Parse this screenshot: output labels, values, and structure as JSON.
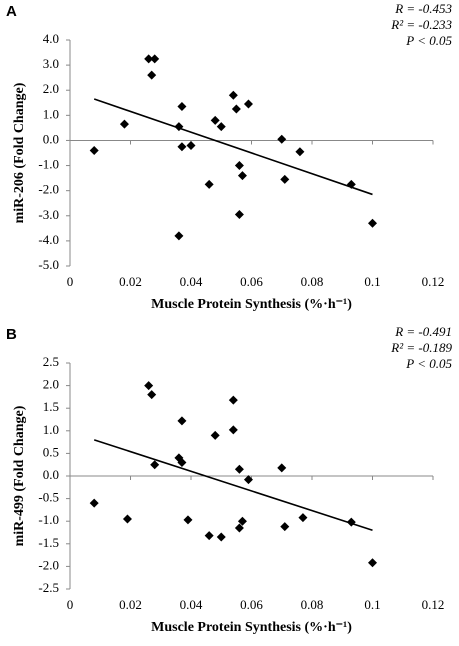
{
  "chart_data": [
    {
      "type": "scatter",
      "panel_label": "A",
      "annotations": [
        "R = -0.453",
        "R² = -0.233",
        "P < 0.05"
      ],
      "x_label": "Muscle Protein Synthesis (%·h⁻¹)",
      "y_label": "miR-206 (Fold Change)",
      "color": "#000000",
      "x": [
        0.008,
        0.018,
        0.026,
        0.027,
        0.028,
        0.036,
        0.036,
        0.037,
        0.037,
        0.04,
        0.046,
        0.048,
        0.05,
        0.054,
        0.055,
        0.056,
        0.056,
        0.057,
        0.059,
        0.07,
        0.071,
        0.076,
        0.093,
        0.1
      ],
      "values": [
        -0.4,
        0.65,
        3.25,
        2.6,
        3.25,
        -3.8,
        0.55,
        1.35,
        -0.25,
        -0.2,
        -1.75,
        0.8,
        0.55,
        1.8,
        1.25,
        -1.0,
        -2.95,
        -1.4,
        1.45,
        0.05,
        -1.55,
        -0.45,
        -1.75,
        -3.3
      ],
      "trendline": {
        "x": [
          0.008,
          0.1
        ],
        "y": [
          1.65,
          -2.15
        ]
      },
      "xlim": [
        0,
        0.12
      ],
      "xticks": [
        0,
        0.02,
        0.04,
        0.06,
        0.08,
        0.1,
        0.12
      ],
      "ylim": [
        -5,
        4
      ],
      "yticks": [
        {
          "value": 4,
          "label": "4.0"
        },
        {
          "value": 3,
          "label": "3.0"
        },
        {
          "value": 2,
          "label": "2.0"
        },
        {
          "value": 1,
          "label": "1.0"
        },
        {
          "value": 0,
          "label": "0.0"
        },
        {
          "value": -1,
          "label": "-1.0"
        },
        {
          "value": -2,
          "label": "-2.0"
        },
        {
          "value": -3,
          "label": "-3.0"
        },
        {
          "value": -4,
          "label": "-4.0"
        },
        {
          "value": -5,
          "label": "-5.0"
        }
      ]
    },
    {
      "type": "scatter",
      "panel_label": "B",
      "annotations": [
        "R = -0.491",
        "R² = -0.189",
        "P < 0.05"
      ],
      "x_label": "Muscle Protein Synthesis (%·h⁻¹)",
      "y_label": "miR-499 (Fold Change)",
      "color": "#000000",
      "x": [
        0.008,
        0.019,
        0.026,
        0.027,
        0.028,
        0.036,
        0.037,
        0.037,
        0.039,
        0.046,
        0.048,
        0.05,
        0.054,
        0.054,
        0.056,
        0.056,
        0.057,
        0.059,
        0.07,
        0.071,
        0.077,
        0.093,
        0.1
      ],
      "values": [
        -0.6,
        -0.95,
        2.0,
        1.8,
        0.25,
        0.4,
        0.3,
        1.22,
        -0.97,
        -1.32,
        0.9,
        -1.35,
        1.68,
        1.02,
        0.15,
        -1.15,
        -1.0,
        -0.08,
        0.18,
        -1.12,
        -0.92,
        -1.02,
        -1.92
      ],
      "trendline": {
        "x": [
          0.008,
          0.1
        ],
        "y": [
          0.8,
          -1.2
        ]
      },
      "xlim": [
        0,
        0.12
      ],
      "xticks": [
        0,
        0.02,
        0.04,
        0.06,
        0.08,
        0.1,
        0.12
      ],
      "ylim": [
        -2.5,
        2.5
      ],
      "yticks": [
        {
          "value": 2.5,
          "label": "2.5"
        },
        {
          "value": 2,
          "label": "2.0"
        },
        {
          "value": 1.5,
          "label": "1.5"
        },
        {
          "value": 1,
          "label": "1.0"
        },
        {
          "value": 0.5,
          "label": "0.5"
        },
        {
          "value": 0,
          "label": "0.0"
        },
        {
          "value": -0.5,
          "label": "-0.5"
        },
        {
          "value": -1,
          "label": "-1.0"
        },
        {
          "value": -1.5,
          "label": "-1.5"
        },
        {
          "value": -2,
          "label": "-2.0"
        },
        {
          "value": -2.5,
          "label": "-2.5"
        }
      ]
    }
  ]
}
